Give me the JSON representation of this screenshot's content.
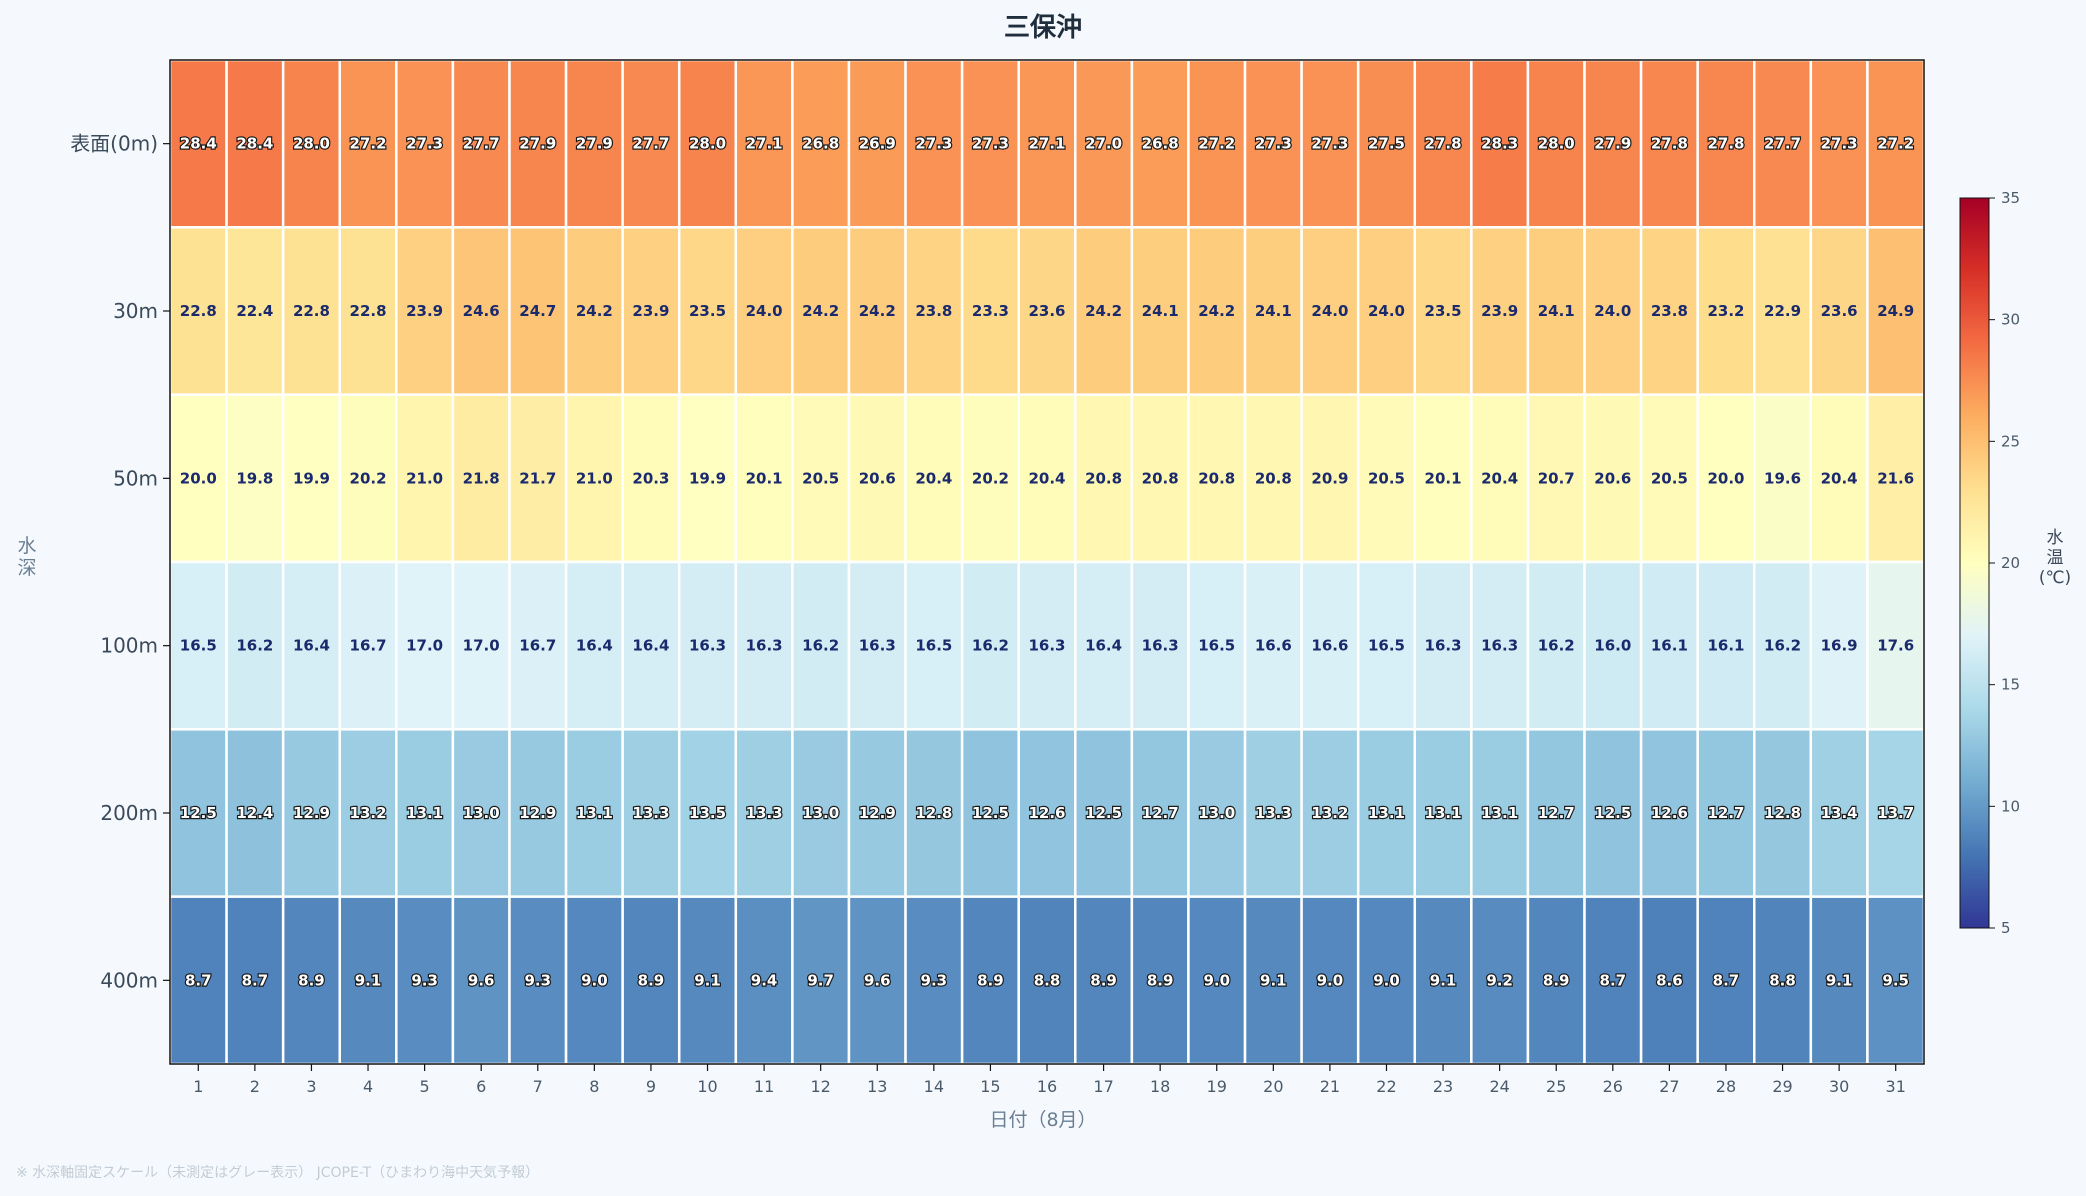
{
  "chart_data": {
    "type": "heatmap",
    "title": "三保沖",
    "xlabel": "日付（8月）",
    "ylabel": "水深",
    "colorbar_label": "水温\n(℃)",
    "colorbar_range": [
      5,
      35
    ],
    "colorbar_ticks": [
      "5",
      "10",
      "15",
      "20",
      "25",
      "30",
      "35"
    ],
    "colormap": "RdYlBu_r",
    "footnote": "※ 水深軸固定スケール（未測定はグレー表示） JCOPE-T（ひまわり海中天気予報）",
    "x": [
      "1",
      "2",
      "3",
      "4",
      "5",
      "6",
      "7",
      "8",
      "9",
      "10",
      "11",
      "12",
      "13",
      "14",
      "15",
      "16",
      "17",
      "18",
      "19",
      "20",
      "21",
      "22",
      "23",
      "24",
      "25",
      "26",
      "27",
      "28",
      "29",
      "30",
      "31"
    ],
    "y": [
      "表面(0m)",
      "30m",
      "50m",
      "100m",
      "200m",
      "400m"
    ],
    "values": [
      [
        28.4,
        28.4,
        28.0,
        27.2,
        27.3,
        27.7,
        27.9,
        27.9,
        27.7,
        28.0,
        27.1,
        26.8,
        26.9,
        27.3,
        27.3,
        27.1,
        27.0,
        26.8,
        27.2,
        27.3,
        27.3,
        27.5,
        27.8,
        28.3,
        28.0,
        27.9,
        27.8,
        27.8,
        27.7,
        27.3,
        27.2
      ],
      [
        22.8,
        22.4,
        22.8,
        22.8,
        23.9,
        24.6,
        24.7,
        24.2,
        23.9,
        23.5,
        24.0,
        24.2,
        24.2,
        23.8,
        23.3,
        23.6,
        24.2,
        24.1,
        24.2,
        24.1,
        24.0,
        24.0,
        23.5,
        23.9,
        24.1,
        24.0,
        23.8,
        23.2,
        22.9,
        23.6,
        24.9
      ],
      [
        20.0,
        19.8,
        19.9,
        20.2,
        21.0,
        21.8,
        21.7,
        21.0,
        20.3,
        19.9,
        20.1,
        20.5,
        20.6,
        20.4,
        20.2,
        20.4,
        20.8,
        20.8,
        20.8,
        20.8,
        20.9,
        20.5,
        20.1,
        20.4,
        20.7,
        20.6,
        20.5,
        20.0,
        19.6,
        20.4,
        21.6
      ],
      [
        16.5,
        16.2,
        16.4,
        16.7,
        17.0,
        17.0,
        16.7,
        16.4,
        16.4,
        16.3,
        16.3,
        16.2,
        16.3,
        16.5,
        16.2,
        16.3,
        16.4,
        16.3,
        16.5,
        16.6,
        16.6,
        16.5,
        16.3,
        16.3,
        16.2,
        16.0,
        16.1,
        16.1,
        16.2,
        16.9,
        17.6
      ],
      [
        12.5,
        12.4,
        12.9,
        13.2,
        13.1,
        13.0,
        12.9,
        13.1,
        13.3,
        13.5,
        13.3,
        13.0,
        12.9,
        12.8,
        12.5,
        12.6,
        12.5,
        12.7,
        13.0,
        13.3,
        13.2,
        13.1,
        13.1,
        13.1,
        12.7,
        12.5,
        12.6,
        12.7,
        12.8,
        13.4,
        13.7
      ],
      [
        8.7,
        8.7,
        8.9,
        9.1,
        9.3,
        9.6,
        9.3,
        9.0,
        8.9,
        9.1,
        9.4,
        9.7,
        9.6,
        9.3,
        8.9,
        8.8,
        8.9,
        8.9,
        9.0,
        9.1,
        9.0,
        9.0,
        9.1,
        9.2,
        8.9,
        8.7,
        8.6,
        8.7,
        8.8,
        9.1,
        9.5
      ]
    ]
  }
}
